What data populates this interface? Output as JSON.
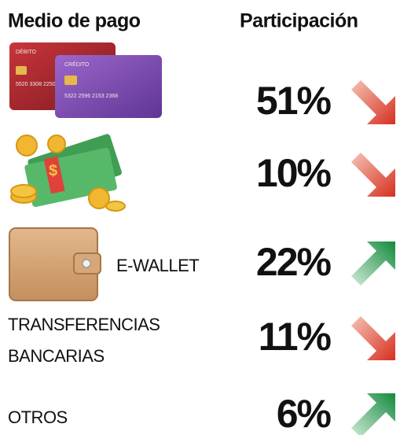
{
  "header": {
    "col1": "Medio de pago",
    "col2": "Participación"
  },
  "cards": {
    "debit_label": "DÉBITO",
    "debit_number": "5520 3308 2250",
    "credit_label": "CRÉDITO",
    "credit_number": "5322 2596 2153 2368"
  },
  "rows": [
    {
      "value": "51%",
      "trend": "down"
    },
    {
      "value": "10%",
      "trend": "down"
    },
    {
      "label_lines": [
        "E-WALLET"
      ],
      "value": "22%",
      "trend": "up"
    },
    {
      "label_lines": [
        "TRANSFERENCIAS",
        "BANCARIAS"
      ],
      "value": "11%",
      "trend": "down"
    },
    {
      "label_lines": [
        "OTROS"
      ],
      "value": "6%",
      "trend": "up"
    }
  ]
}
